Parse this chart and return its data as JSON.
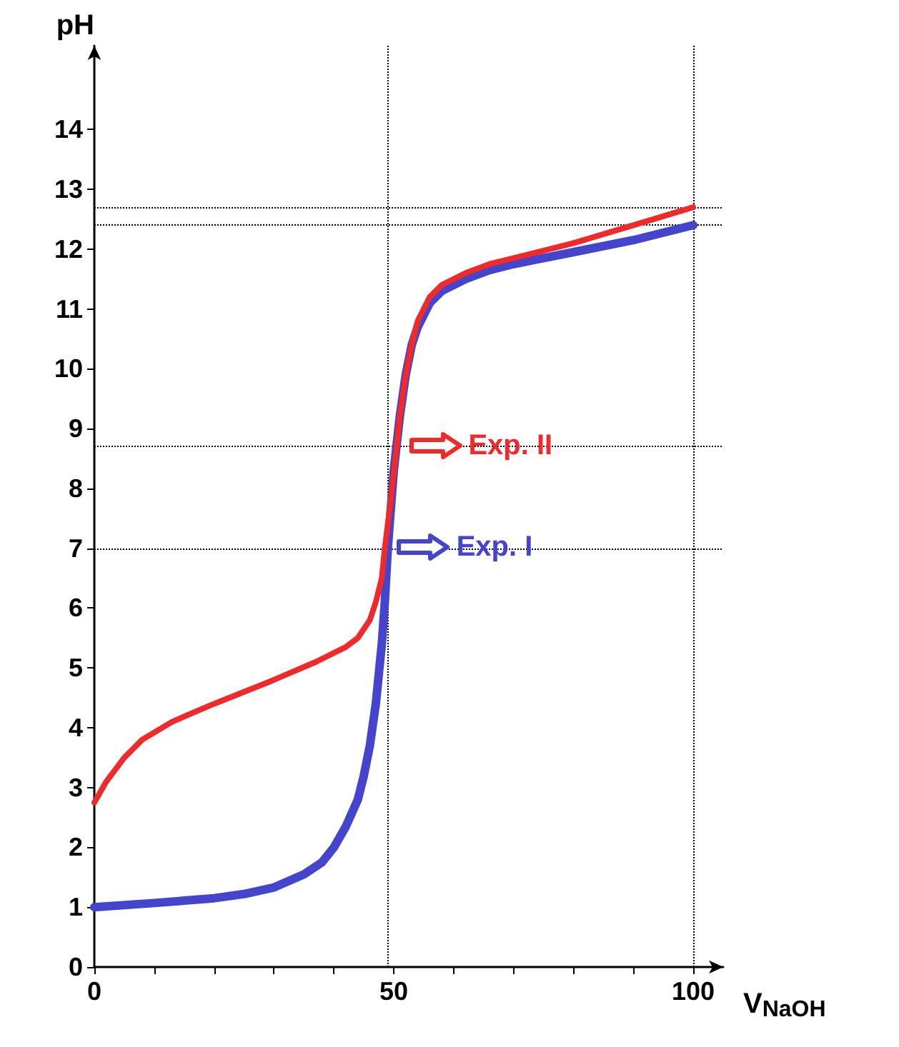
{
  "chart_data": {
    "type": "line",
    "xlabel": "V$_{NaOH}$",
    "ylabel": "pH",
    "series": [
      {
        "color": "#ee2a2a",
        "x": [
          0,
          2,
          5,
          8,
          13,
          20,
          25,
          30,
          37,
          42,
          44,
          46,
          47,
          48,
          48.5,
          49.5,
          50.5,
          51,
          52,
          53,
          54,
          56,
          58,
          62,
          66,
          70,
          80,
          90,
          100
        ],
        "values": [
          2.75,
          3.1,
          3.5,
          3.8,
          4.1,
          4.4,
          4.6,
          4.8,
          5.1,
          5.35,
          5.5,
          5.8,
          6.1,
          6.5,
          7.0,
          7.8,
          8.7,
          9.2,
          9.9,
          10.4,
          10.8,
          11.2,
          11.4,
          11.6,
          11.75,
          11.85,
          12.1,
          12.4,
          12.7
        ]
      },
      {
        "color": "#4444cc",
        "x": [
          0,
          10,
          20,
          25,
          30,
          35,
          38,
          40,
          42,
          44,
          45,
          46,
          47,
          48,
          48.5,
          49,
          50,
          51,
          52,
          53,
          54,
          56,
          58,
          62,
          66,
          70,
          80,
          90,
          100
        ],
        "values": [
          1.0,
          1.07,
          1.15,
          1.22,
          1.33,
          1.55,
          1.75,
          2.0,
          2.35,
          2.8,
          3.2,
          3.7,
          4.4,
          5.4,
          6.1,
          7.0,
          8.3,
          9.2,
          9.9,
          10.4,
          10.7,
          11.1,
          11.3,
          11.5,
          11.65,
          11.75,
          11.95,
          12.15,
          12.4
        ]
      }
    ],
    "annotations": [
      {
        "text": "Exp. II",
        "x": 51,
        "y": 8.7
      },
      {
        "text": "Exp. I",
        "x": 49,
        "y": 7
      }
    ],
    "ref_lines": [
      {
        "axis": "y",
        "value": 12.7,
        "line_style": "dotted"
      },
      {
        "axis": "y",
        "value": 12.4,
        "line_style": "dotted"
      },
      {
        "axis": "y",
        "value": 8.7,
        "line_style": "dotted"
      },
      {
        "axis": "y",
        "value": 7,
        "line_style": "dotted"
      },
      {
        "axis": "x",
        "value": 49,
        "line_style": "dotted"
      },
      {
        "axis": "x",
        "value": 100,
        "line_style": "dotted"
      }
    ],
    "xlim": [
      0,
      105
    ],
    "ylim": [
      0,
      15.4
    ],
    "xticks": [
      0,
      {
        "value": 10,
        "label": null
      },
      {
        "value": 20,
        "label": null
      },
      {
        "value": 30,
        "label": null
      },
      {
        "value": 40,
        "label": null
      },
      50,
      {
        "value": 60,
        "label": null
      },
      {
        "value": 70,
        "label": null
      },
      {
        "value": 80,
        "label": null
      },
      {
        "value": 90,
        "label": null
      },
      100
    ],
    "yticks": [
      0,
      1,
      2,
      3,
      4,
      5,
      6,
      7,
      8,
      9,
      10,
      11,
      12,
      13,
      14
    ],
    "grid": false,
    "marker": "none",
    "line_style": "solid"
  }
}
